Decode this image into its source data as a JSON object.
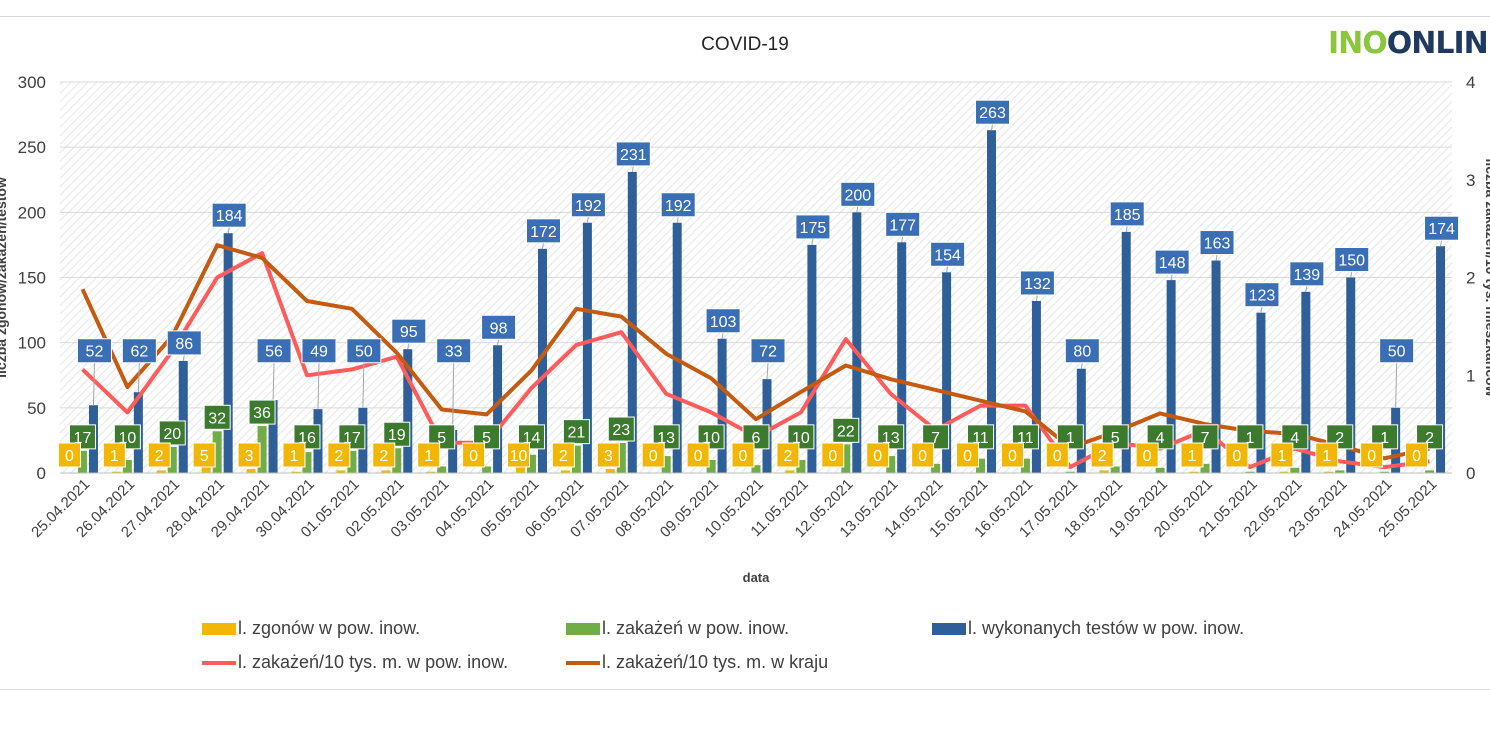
{
  "logo": {
    "part1": "INO",
    "part2": "ONLIN"
  },
  "colors": {
    "deaths": "#f2b705",
    "cases": "#70ad47",
    "tests": "#2e5f99",
    "local_rate": "#ff5b5b",
    "national_rate": "#c55a11",
    "label_blue": "#3a6eb5",
    "label_green": "#3c7a2e"
  },
  "chart_data": {
    "type": "bar",
    "title": "COVID-19",
    "xlabel": "data",
    "ylabel": "liczba zgonów/zakażeń/testów",
    "y2label": "liczba zakażeń/10 tys. mieszkańców",
    "ylim": [
      0,
      300
    ],
    "y2lim": [
      0,
      4
    ],
    "yticks": [
      0,
      50,
      100,
      150,
      200,
      250,
      300
    ],
    "y2ticks": [
      0,
      1,
      2,
      3,
      4
    ],
    "categories": [
      "25.04.2021",
      "26.04.2021",
      "27.04.2021",
      "28.04.2021",
      "29.04.2021",
      "30.04.2021",
      "01.05.2021",
      "02.05.2021",
      "03.05.2021",
      "04.05.2021",
      "05.05.2021",
      "06.05.2021",
      "07.05.2021",
      "08.05.2021",
      "09.05.2021",
      "10.05.2021",
      "11.05.2021",
      "12.05.2021",
      "13.05.2021",
      "14.05.2021",
      "15.05.2021",
      "16.05.2021",
      "17.05.2021",
      "18.05.2021",
      "19.05.2021",
      "20.05.2021",
      "21.05.2021",
      "22.05.2021",
      "23.05.2021",
      "24.05.2021",
      "25.05.2021"
    ],
    "series": [
      {
        "name": "l. zgonów w pow. inow.",
        "axis": "left",
        "kind": "bar",
        "values": [
          0,
          1,
          2,
          5,
          3,
          1,
          2,
          2,
          1,
          0,
          10,
          2,
          3,
          0,
          0,
          0,
          2,
          0,
          0,
          0,
          0,
          0,
          0,
          2,
          0,
          1,
          0,
          1,
          1,
          0,
          0
        ]
      },
      {
        "name": "l. zakażeń w pow. inow.",
        "axis": "left",
        "kind": "bar",
        "values": [
          17,
          10,
          20,
          32,
          36,
          16,
          17,
          19,
          5,
          5,
          14,
          21,
          23,
          13,
          10,
          6,
          10,
          22,
          13,
          7,
          11,
          11,
          1,
          5,
          4,
          7,
          1,
          4,
          2,
          1,
          2
        ]
      },
      {
        "name": "l. wykonanych testów w pow. inow.",
        "axis": "left",
        "kind": "bar",
        "values": [
          52,
          62,
          86,
          184,
          56,
          49,
          50,
          95,
          33,
          98,
          172,
          192,
          231,
          192,
          103,
          72,
          175,
          200,
          177,
          154,
          263,
          132,
          80,
          185,
          148,
          163,
          123,
          139,
          150,
          50,
          174
        ]
      },
      {
        "name": "l. zakażeń/10 tys. m. w pow. inow.",
        "axis": "right",
        "kind": "line",
        "values": [
          1.06,
          0.62,
          1.25,
          2.0,
          2.25,
          1.0,
          1.06,
          1.19,
          0.31,
          0.31,
          0.87,
          1.31,
          1.44,
          0.81,
          0.62,
          0.37,
          0.62,
          1.37,
          0.81,
          0.44,
          0.69,
          0.69,
          0.06,
          0.31,
          0.25,
          0.44,
          0.06,
          0.25,
          0.12,
          0.06,
          0.12
        ]
      },
      {
        "name": "l. zakażeń/10 tys. m. w kraju",
        "axis": "right",
        "kind": "line",
        "values": [
          1.88,
          0.88,
          1.4,
          2.33,
          2.2,
          1.76,
          1.68,
          1.23,
          0.65,
          0.6,
          1.05,
          1.68,
          1.6,
          1.22,
          0.97,
          0.55,
          0.83,
          1.1,
          0.96,
          0.85,
          0.74,
          0.63,
          0.26,
          0.42,
          0.61,
          0.5,
          0.43,
          0.4,
          0.28,
          0.15,
          0.25
        ]
      }
    ]
  }
}
